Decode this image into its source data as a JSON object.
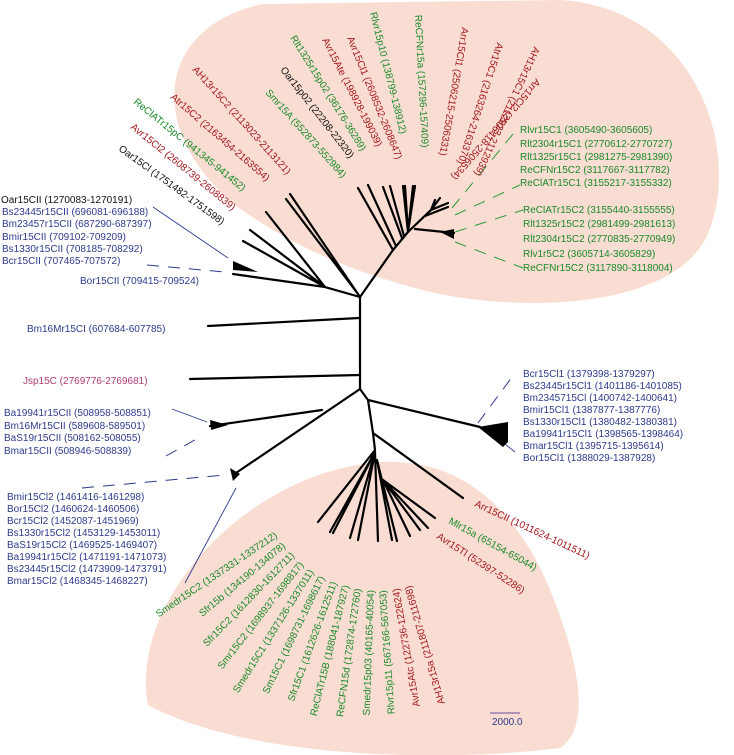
{
  "colors": {
    "clade_fill": "#f9ddd2",
    "red": "#a3161c",
    "green": "#198a2a",
    "blue": "#2e3a8c",
    "pink": "#b03a78",
    "black": "#111111"
  },
  "top_labels": [
    "AH13r15C2 (2113023-2113121)",
    "Atr15C2 (2163454-2163554)",
    "ReClATr15pC (941345-941452)",
    "Avr15Cl2 (2608739-2608839)",
    "Oar15Cl (1751482-1751598)",
    "Smr15A (552873-552984)",
    "Oar15p02 (22208-22320)",
    "Rlt1325r15p02 (36176-36289)",
    "Avr15Ate (198928-199039)",
    "Avr15Cl1 (2608532-2608647)",
    "Rlvr15p10 (138799-138912)",
    "ReCFNr15a (157296-157409)",
    "Arr15Cl1 (2506215-2506331)",
    "Atr15C1 (2163264-2163370)",
    "AH13r15C1 (2112823-2112939)",
    "Arr15Cl2 (2506418-2506534)"
  ],
  "right_top_labels": [
    "Rlvr15C1 (3605490-3605605)",
    "Rlt2304r15C1 (2770612-2770727)",
    "Rlt1325r15C1 (2981275-2981390)",
    "ReCFNr15C2 (3117667-3117782)",
    "ReClATr15C1 (3155217-3155332)",
    "ReClATr15C2 (3155440-3155555)",
    "Rlt1325r15C2 (2981499-2981613)",
    "Rlt2304r15C2 (2770835-2770949)",
    "Rlv1r5C2 (3605714-3605829)",
    "ReCFNr15C2 (3117890-3118004)"
  ],
  "left_top_labels": [
    "Oar15CII (1270083-1270191)",
    "Bs23445r15CII (696081-696188)",
    "Bm23457r15CII (687290-687397)",
    "Bmir15CII (709102-709209)",
    "Bs1330r15CII (708185-708292)",
    "Bcr15CII (707465-707572)",
    "Bor15CII (709415-709524)"
  ],
  "bm16_label": "Bm16Mr15CI (607684-607785)",
  "jsp_label": "Jsp15C (2769776-2769681)",
  "left_mid_labels": [
    "Ba19941r15CII (508958-508851)",
    "Bm16Mr15CII (589608-589501)",
    "BaS19r15CII  (508162-508055)",
    "Bmar15CII (508946-508839)"
  ],
  "left_bottom_labels": [
    "Bmir15Cl2 (1461416-1461298)",
    "Bor15Cl2 (1460624-1460506)",
    "Bcr15Cl2 (1452087-1451969)",
    "Bs1330r15Cl2 (1453129-1453011)",
    "BaS19r15Cl2 (1469525-1469407)",
    "Ba19941r15Cl2 (1471191-1471073)",
    "Bs23445r15Cl2 (1473909-1473791)",
    "Bmar15Cl2 (1468345-1468227)"
  ],
  "right_mid_labels": [
    "Bcr15Cl1 (1379398-1379297)",
    "Bs23445r15Cl1 (1401186-1401085)",
    "Bm2345715Cl (1400742-1400641)",
    "Bmir15Cl1 (1387877-1387776)",
    "Bs1330r15Cl1 (1380482-1380381)",
    "Ba19941r15Cl1 (1398565-1398464)",
    "Bmar15Cl1 (1395715-1395614)",
    "Bor15Cl1 (1388029-1387928)"
  ],
  "bottom_labels": [
    "Arr15CII (1011624-1011511)",
    "Mlr15a (65154-65044)",
    "Avr15Tl (52397-52286)",
    "Sfr15b (134190-134078)",
    "Smedr15C2 (1337331-1337212)",
    "Sfr15C2 (1612830-1612711)",
    "Smr15C2 (1698937-1698817)",
    "Smedr15C1 (1337126-1337011)",
    "Sm15C1 (1698731-1698617)",
    "Sfr15C1 (1612626-1612511)",
    "ReClATr15B (188041-187927)",
    "ReCFN15d (172874-172760)",
    "Smedr15p03   (40165-40054)",
    "Rlvr15p11 (567166-567053)",
    "Avr15Atc (122736-122624)",
    "AH13r15a (211807-211698)"
  ],
  "scale_bar": {
    "label": "2000.0"
  }
}
